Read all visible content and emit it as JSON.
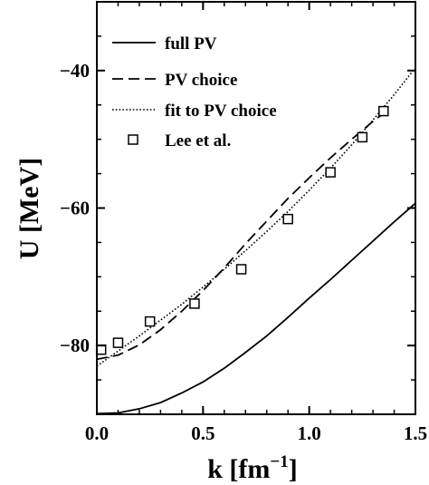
{
  "chart_data": {
    "type": "line",
    "xlabel": "k [fm",
    "xlabel_sup": "−1",
    "xlabel_close": "]",
    "ylabel": "U [MeV]",
    "xlim": [
      0.0,
      1.5
    ],
    "ylim": [
      -90,
      -30
    ],
    "x_ticks": [
      {
        "value": 0.0,
        "label": "0.0"
      },
      {
        "value": 0.5,
        "label": "0.5"
      },
      {
        "value": 1.0,
        "label": "1.0"
      },
      {
        "value": 1.5,
        "label": "1.5"
      }
    ],
    "y_ticks": [
      {
        "value": -40,
        "label": "−40"
      },
      {
        "value": -60,
        "label": "−60"
      },
      {
        "value": -80,
        "label": "−80"
      }
    ],
    "x_minor_step": 0.1,
    "y_minor_step": 5,
    "grid": false,
    "legend_position": "top-left",
    "series": [
      {
        "name": "full PV",
        "style": "solid",
        "x": [
          0.0,
          0.1,
          0.2,
          0.3,
          0.4,
          0.5,
          0.6,
          0.7,
          0.8,
          0.9,
          1.0,
          1.1,
          1.2,
          1.3,
          1.4,
          1.5
        ],
        "y": [
          -89.9,
          -89.8,
          -89.2,
          -88.3,
          -86.9,
          -85.3,
          -83.3,
          -81.0,
          -78.6,
          -75.9,
          -73.1,
          -70.4,
          -67.6,
          -64.8,
          -62.0,
          -59.3
        ]
      },
      {
        "name": "PV choice",
        "style": "dashed",
        "x": [
          0.0,
          0.1,
          0.2,
          0.3,
          0.4,
          0.5,
          0.6,
          0.7,
          0.8,
          0.9,
          1.0,
          1.1,
          1.2,
          1.3,
          1.36
        ],
        "y": [
          -82.0,
          -81.4,
          -79.9,
          -77.7,
          -75.0,
          -72.0,
          -68.7,
          -65.2,
          -61.9,
          -58.6,
          -55.6,
          -52.7,
          -50.0,
          -47.4,
          -46.0
        ]
      },
      {
        "name": "fit to PV choice",
        "style": "dotted",
        "x": [
          0.0,
          0.1,
          0.2,
          0.3,
          0.4,
          0.5,
          0.6,
          0.7,
          0.8,
          0.9,
          1.0,
          1.1,
          1.2,
          1.3,
          1.4,
          1.5
        ],
        "y": [
          -83.0,
          -80.8,
          -78.6,
          -76.3,
          -74.0,
          -71.5,
          -68.9,
          -66.2,
          -63.4,
          -60.5,
          -57.4,
          -54.2,
          -50.8,
          -47.2,
          -43.5,
          -39.6
        ]
      },
      {
        "name": "Lee et al.",
        "style": "markers-square",
        "x": [
          0.02,
          0.1,
          0.25,
          0.46,
          0.68,
          0.9,
          1.1,
          1.25,
          1.35
        ],
        "y": [
          -80.6,
          -79.6,
          -76.5,
          -73.9,
          -68.9,
          -61.6,
          -54.8,
          -49.7,
          -45.9
        ]
      }
    ]
  }
}
